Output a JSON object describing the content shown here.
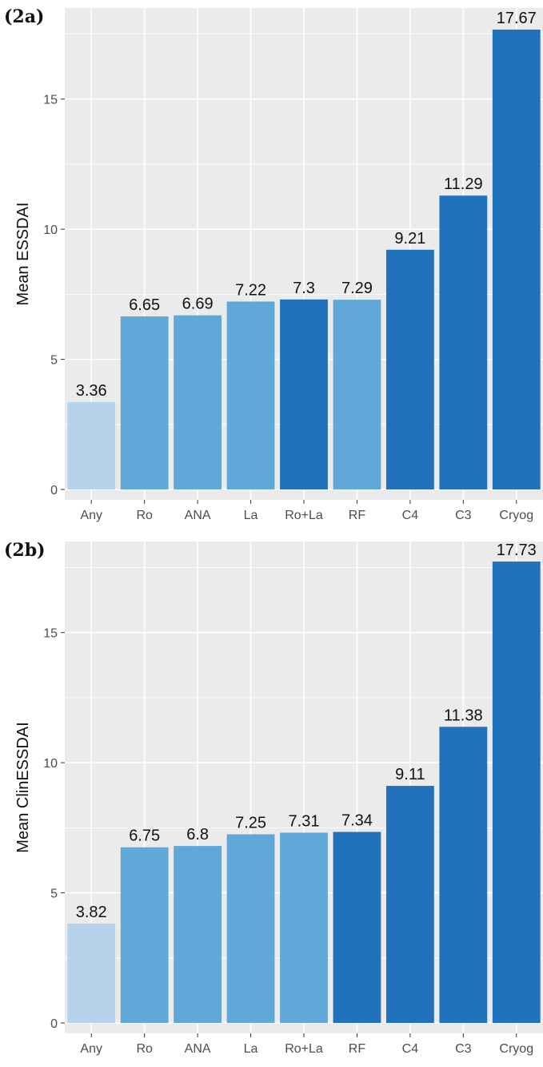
{
  "chart_data": [
    {
      "type": "bar",
      "panel_label": "(2a)",
      "ylabel": "Mean ESSDAI",
      "categories": [
        "Any",
        "Ro",
        "ANA",
        "La",
        "Ro+La",
        "RF",
        "C4",
        "C3",
        "Cryog"
      ],
      "values": [
        3.36,
        6.65,
        6.69,
        7.22,
        7.3,
        7.29,
        9.21,
        11.29,
        17.67
      ],
      "value_labels": [
        "3.36",
        "6.65",
        "6.69",
        "7.22",
        "7.3",
        "7.29",
        "9.21",
        "11.29",
        "17.67"
      ],
      "bar_colors": [
        "#b7d3ec",
        "#5fa8d7",
        "#5fa8d7",
        "#5fa8d7",
        "#1f72bb",
        "#5fa8d7",
        "#1f72bb",
        "#1f72bb",
        "#1f72bb"
      ],
      "yticks": [
        0,
        5,
        10,
        15
      ],
      "ytick_labels": [
        "0",
        "5",
        "10",
        "15"
      ],
      "ylim": [
        -0.4,
        18.5
      ],
      "grid": true
    },
    {
      "type": "bar",
      "panel_label": "(2b)",
      "ylabel": "Mean ClinESSDAI",
      "categories": [
        "Any",
        "Ro",
        "ANA",
        "La",
        "Ro+La",
        "RF",
        "C4",
        "C3",
        "Cryog"
      ],
      "values": [
        3.82,
        6.75,
        6.8,
        7.25,
        7.31,
        7.34,
        9.11,
        11.38,
        17.73
      ],
      "value_labels": [
        "3.82",
        "6.75",
        "6.8",
        "7.25",
        "7.31",
        "7.34",
        "9.11",
        "11.38",
        "17.73"
      ],
      "bar_colors": [
        "#b7d3ec",
        "#5fa8d7",
        "#5fa8d7",
        "#5fa8d7",
        "#5fa8d7",
        "#1f72bb",
        "#1f72bb",
        "#1f72bb",
        "#1f72bb"
      ],
      "yticks": [
        0,
        5,
        10,
        15
      ],
      "ytick_labels": [
        "0",
        "5",
        "10",
        "15"
      ],
      "ylim": [
        -0.4,
        18.5
      ],
      "grid": true
    }
  ],
  "colors": {
    "panel_background": "#ebebeb",
    "grid_line": "#ffffff",
    "light_bar": "#b7d3ec",
    "medium_bar": "#5fa8d7",
    "dark_bar": "#1f72bb"
  }
}
